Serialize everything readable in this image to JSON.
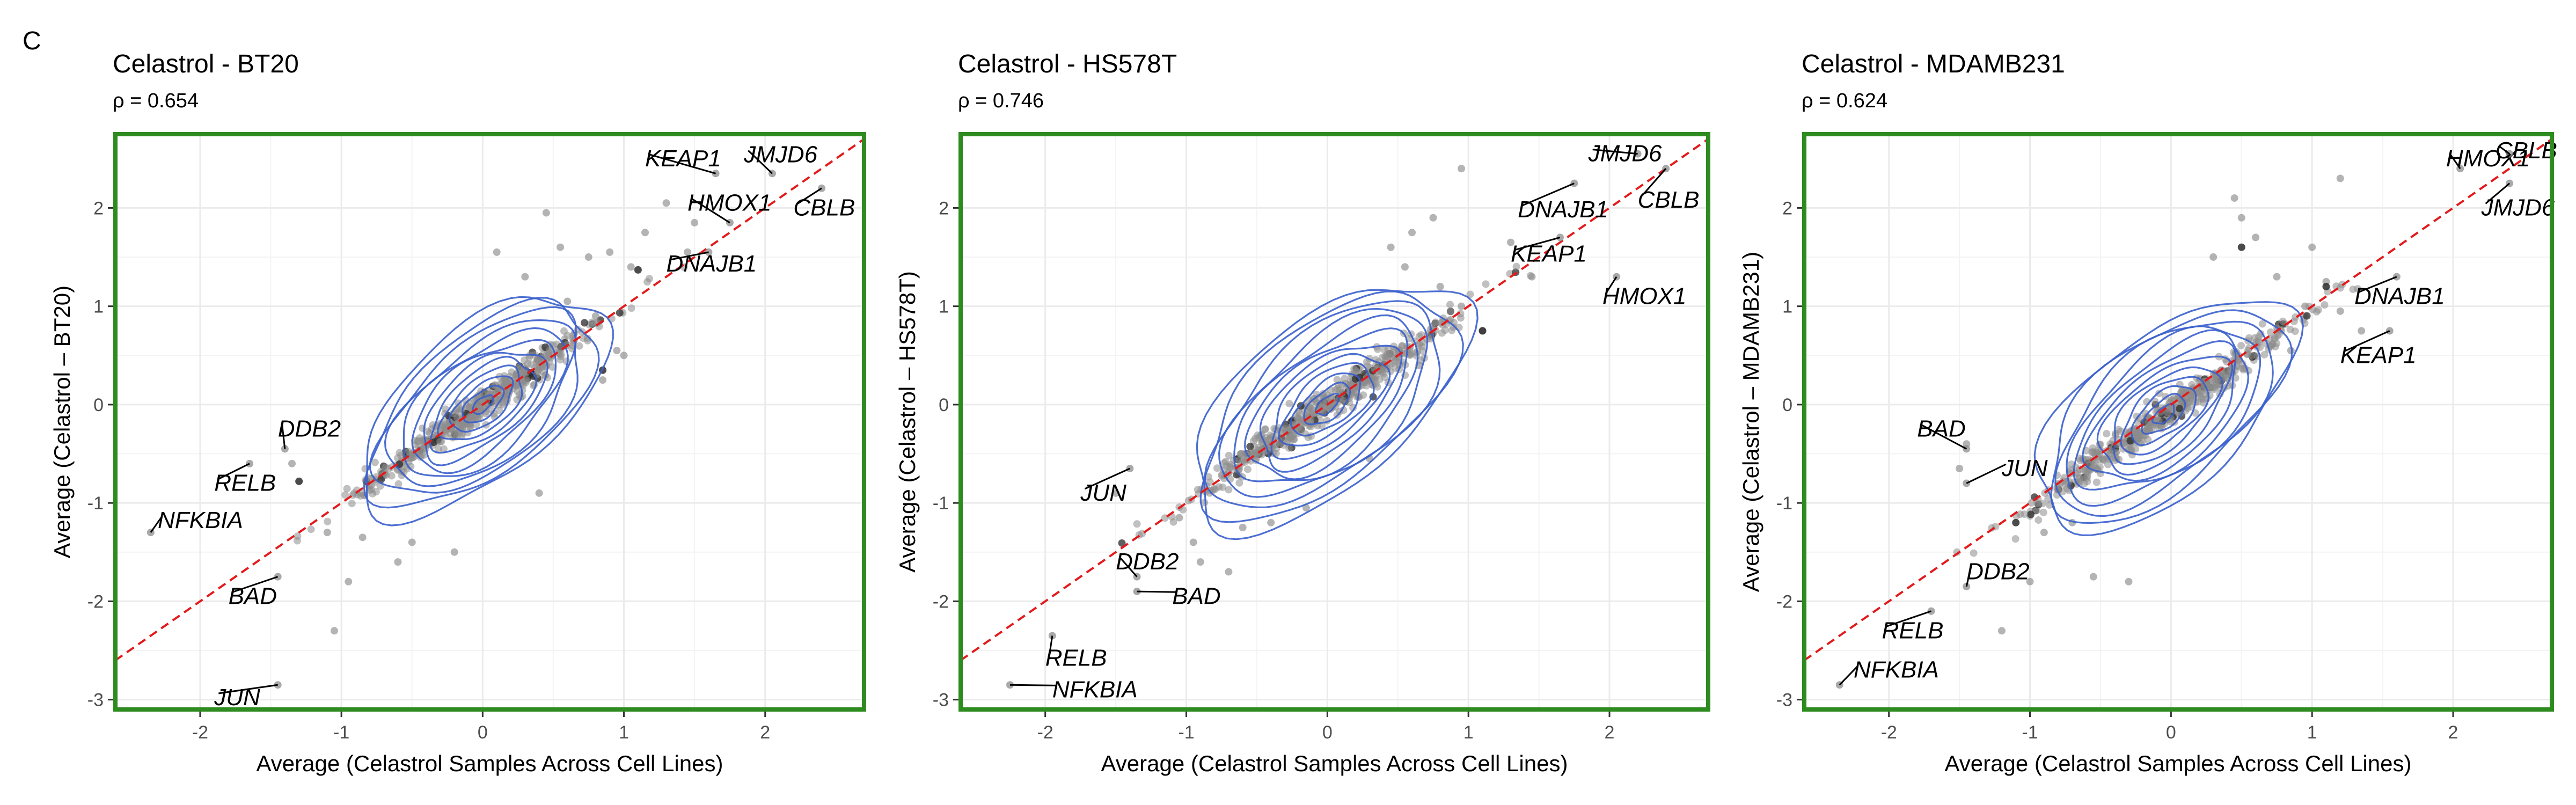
{
  "figure": {
    "panel_letter": "C"
  },
  "style": {
    "frame_color": "#2e8b1f",
    "point_color": "#8c8c8c",
    "highlight_point_color": "#2b2b2b",
    "contour_color": "#3a5fcd",
    "diagonal_color": "#e31a1c",
    "grid_color": "#ebebeb"
  },
  "chart_data": [
    {
      "type": "scatter",
      "title": "Celastrol - BT20",
      "subtitle": "ρ = 0.654",
      "xlabel": "Average (Celastrol Samples Across Cell Lines)",
      "ylabel": "Average (Celastrol – BT20)",
      "xlim": [
        -2.6,
        2.7
      ],
      "ylim": [
        -3.1,
        2.75
      ],
      "xticks": [
        -2,
        -1,
        0,
        1,
        2
      ],
      "yticks": [
        -3,
        -2,
        -1,
        0,
        1,
        2
      ],
      "grid": true,
      "diagonal": "y = x",
      "seed": 11,
      "density_stretch": 1,
      "density_cx": 0,
      "density_cy": 0,
      "points": [
        [
          1.3,
          2.05
        ],
        [
          1.5,
          1.85
        ],
        [
          1.15,
          1.75
        ],
        [
          0.9,
          1.55
        ],
        [
          0.75,
          1.5
        ],
        [
          1.05,
          1.4
        ],
        [
          0.55,
          1.6
        ],
        [
          0.1,
          1.55
        ],
        [
          0.3,
          1.3
        ],
        [
          -0.6,
          -1.6
        ],
        [
          -0.95,
          -1.8
        ],
        [
          -1.1,
          -1.3
        ],
        [
          -1.05,
          -2.3
        ],
        [
          -0.85,
          -1.35
        ],
        [
          0.95,
          0.55
        ],
        [
          1.0,
          0.5
        ],
        [
          0.6,
          1.05
        ],
        [
          -0.5,
          -1.4
        ],
        [
          -1.35,
          -0.6
        ],
        [
          0.4,
          -0.9
        ],
        [
          0.8,
          0.9
        ],
        [
          -0.2,
          -1.5
        ],
        [
          0.45,
          1.95
        ],
        [
          1.45,
          1.55
        ],
        [
          0.85,
          0.25
        ]
      ],
      "dark_points": [
        [
          1.1,
          1.37
        ],
        [
          -1.3,
          -0.78
        ],
        [
          0.85,
          0.35
        ]
      ],
      "labels": [
        {
          "text": "KEAP1",
          "x": 1.65,
          "y": 2.35,
          "tx": 1.15,
          "ty": 2.5
        },
        {
          "text": "JMJD6",
          "x": 2.05,
          "y": 2.35,
          "tx": 1.85,
          "ty": 2.54
        },
        {
          "text": "HMOX1",
          "x": 1.75,
          "y": 1.85,
          "tx": 1.45,
          "ty": 2.05
        },
        {
          "text": "CBLB",
          "x": 2.4,
          "y": 2.2,
          "tx": 2.2,
          "ty": 2.0
        },
        {
          "text": "DNAJB1",
          "x": 1.6,
          "y": 1.55,
          "tx": 1.3,
          "ty": 1.43
        },
        {
          "text": "DDB2",
          "x": -1.4,
          "y": -0.45,
          "tx": -1.45,
          "ty": -0.25
        },
        {
          "text": "RELB",
          "x": -1.65,
          "y": -0.6,
          "tx": -1.9,
          "ty": -0.8
        },
        {
          "text": "NFKBIA",
          "x": -2.35,
          "y": -1.3,
          "tx": -2.3,
          "ty": -1.18
        },
        {
          "text": "BAD",
          "x": -1.45,
          "y": -1.75,
          "tx": -1.8,
          "ty": -1.95
        },
        {
          "text": "JUN",
          "x": -1.45,
          "y": -2.85,
          "tx": -1.9,
          "ty": -2.98
        }
      ]
    },
    {
      "type": "scatter",
      "title": "Celastrol - HS578T",
      "subtitle": "ρ = 0.746",
      "xlabel": "Average (Celastrol Samples Across Cell Lines)",
      "ylabel": "Average (Celastrol – HS578T)",
      "xlim": [
        -2.6,
        2.7
      ],
      "ylim": [
        -3.1,
        2.75
      ],
      "xticks": [
        -2,
        -1,
        0,
        1,
        2
      ],
      "yticks": [
        -3,
        -2,
        -1,
        0,
        1,
        2
      ],
      "grid": true,
      "diagonal": "y = x",
      "seed": 29,
      "density_stretch": 1.12,
      "density_cx": 0,
      "density_cy": 0,
      "points": [
        [
          0.95,
          2.4
        ],
        [
          0.75,
          1.9
        ],
        [
          1.3,
          1.65
        ],
        [
          0.6,
          1.75
        ],
        [
          0.45,
          1.6
        ],
        [
          -1.5,
          -0.9
        ],
        [
          -1.05,
          -1.15
        ],
        [
          -0.95,
          -1.4
        ],
        [
          -0.7,
          -1.7
        ],
        [
          -0.9,
          -1.6
        ],
        [
          -0.4,
          -1.2
        ],
        [
          1.1,
          0.75
        ],
        [
          0.95,
          1.0
        ],
        [
          0.8,
          1.2
        ],
        [
          -0.6,
          -1.25
        ],
        [
          0.65,
          0.4
        ],
        [
          0.3,
          -0.55
        ],
        [
          -0.15,
          -1.05
        ],
        [
          0.55,
          1.4
        ],
        [
          1.45,
          1.3
        ]
      ],
      "dark_points": [
        [
          1.1,
          0.75
        ]
      ],
      "labels": [
        {
          "text": "JMJD6",
          "x": 2.2,
          "y": 2.55,
          "tx": 1.85,
          "ty": 2.55
        },
        {
          "text": "DNAJB1",
          "x": 1.75,
          "y": 2.25,
          "tx": 1.35,
          "ty": 1.98
        },
        {
          "text": "CBLB",
          "x": 2.4,
          "y": 2.4,
          "tx": 2.2,
          "ty": 2.08
        },
        {
          "text": "KEAP1",
          "x": 1.65,
          "y": 1.7,
          "tx": 1.3,
          "ty": 1.53
        },
        {
          "text": "HMOX1",
          "x": 2.05,
          "y": 1.3,
          "tx": 1.95,
          "ty": 1.1
        },
        {
          "text": "JUN",
          "x": -1.4,
          "y": -0.65,
          "tx": -1.75,
          "ty": -0.9
        },
        {
          "text": "DDB2",
          "x": -1.35,
          "y": -1.75,
          "tx": -1.5,
          "ty": -1.6
        },
        {
          "text": "BAD",
          "x": -1.35,
          "y": -1.9,
          "tx": -1.1,
          "ty": -1.95
        },
        {
          "text": "RELB",
          "x": -1.95,
          "y": -2.35,
          "tx": -2.0,
          "ty": -2.58
        },
        {
          "text": "NFKBIA",
          "x": -2.25,
          "y": -2.85,
          "tx": -1.95,
          "ty": -2.9
        }
      ]
    },
    {
      "type": "scatter",
      "title": "Celastrol - MDAMB231",
      "subtitle": "ρ = 0.624",
      "xlabel": "Average (Celastrol Samples Across Cell Lines)",
      "ylabel": "Average (Celastrol – MDAMB231)",
      "xlim": [
        -2.6,
        2.7
      ],
      "ylim": [
        -3.1,
        2.75
      ],
      "xticks": [
        -2,
        -1,
        0,
        1,
        2
      ],
      "yticks": [
        -3,
        -2,
        -1,
        0,
        1,
        2
      ],
      "grid": true,
      "diagonal": "y = x",
      "seed": 47,
      "density_stretch": 1.05,
      "density_cx": -0.05,
      "density_cy": -0.1,
      "points": [
        [
          1.2,
          2.3
        ],
        [
          0.45,
          2.1
        ],
        [
          0.6,
          1.7
        ],
        [
          0.3,
          1.5
        ],
        [
          1.0,
          1.6
        ],
        [
          0.75,
          1.3
        ],
        [
          -1.0,
          -1.8
        ],
        [
          -1.2,
          -2.3
        ],
        [
          -0.9,
          -1.3
        ],
        [
          -0.55,
          -1.75
        ],
        [
          -0.3,
          -1.8
        ],
        [
          -1.45,
          -0.4
        ],
        [
          -1.5,
          -0.65
        ],
        [
          1.35,
          0.75
        ],
        [
          1.2,
          0.95
        ],
        [
          0.95,
          1.0
        ],
        [
          0.85,
          0.55
        ],
        [
          -0.7,
          -1.2
        ],
        [
          0.5,
          1.9
        ],
        [
          1.1,
          1.25
        ]
      ],
      "dark_points": [
        [
          0.5,
          1.6
        ],
        [
          1.1,
          1.2
        ],
        [
          -1.1,
          -1.2
        ]
      ],
      "labels": [
        {
          "text": "HMOX1",
          "x": 2.05,
          "y": 2.4,
          "tx": 1.95,
          "ty": 2.5
        },
        {
          "text": "CBLB",
          "x": 2.4,
          "y": 2.55,
          "tx": 2.3,
          "ty": 2.58
        },
        {
          "text": "JMJD6",
          "x": 2.4,
          "y": 2.25,
          "tx": 2.2,
          "ty": 2.0
        },
        {
          "text": "DNAJB1",
          "x": 1.6,
          "y": 1.3,
          "tx": 1.3,
          "ty": 1.1
        },
        {
          "text": "KEAP1",
          "x": 1.55,
          "y": 0.75,
          "tx": 1.2,
          "ty": 0.5
        },
        {
          "text": "BAD",
          "x": -1.45,
          "y": -0.45,
          "tx": -1.8,
          "ty": -0.25
        },
        {
          "text": "JUN",
          "x": -1.45,
          "y": -0.8,
          "tx": -1.2,
          "ty": -0.65
        },
        {
          "text": "DDB2",
          "x": -1.45,
          "y": -1.85,
          "tx": -1.45,
          "ty": -1.7
        },
        {
          "text": "RELB",
          "x": -1.7,
          "y": -2.1,
          "tx": -2.05,
          "ty": -2.3
        },
        {
          "text": "NFKBIA",
          "x": -2.35,
          "y": -2.85,
          "tx": -2.25,
          "ty": -2.7
        }
      ]
    }
  ]
}
